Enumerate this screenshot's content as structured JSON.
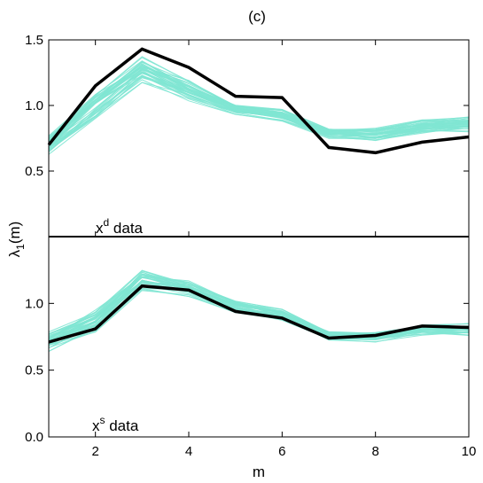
{
  "chart_data": {
    "type": "line",
    "title": "(c)",
    "xlabel": "m",
    "ylabel": "λ₁(m)",
    "ylabel_base": "λ",
    "ylabel_sub": "1",
    "ylabel_rest": "(m)",
    "x": [
      1,
      2,
      3,
      4,
      5,
      6,
      7,
      8,
      9,
      10
    ],
    "xlim": [
      1,
      10
    ],
    "xticks": [
      "2",
      "4",
      "6",
      "8",
      "10"
    ],
    "xtick_values": [
      2,
      4,
      6,
      8,
      10
    ],
    "colors": {
      "simulations": "#7fe6d3",
      "observed": "#000000"
    },
    "panels": [
      {
        "label_base": "x",
        "label_sup": "d",
        "label_rest": " data",
        "ylim": [
          0,
          1.5
        ],
        "yticks": [
          "0.5",
          "1.0",
          "1.5"
        ],
        "ytick_values": [
          0.5,
          1.0,
          1.5
        ],
        "observed": {
          "values": [
            0.7,
            1.15,
            1.43,
            1.29,
            1.07,
            1.06,
            0.68,
            0.64,
            0.72,
            0.76
          ]
        },
        "ensemble": {
          "mean": [
            0.7,
            1.0,
            1.27,
            1.12,
            0.97,
            0.93,
            0.79,
            0.78,
            0.84,
            0.86
          ],
          "spread": [
            0.09,
            0.12,
            0.1,
            0.08,
            0.04,
            0.05,
            0.04,
            0.05,
            0.06,
            0.06
          ],
          "count": 40
        }
      },
      {
        "label_base": "x",
        "label_sup": "s",
        "label_rest": " data",
        "ylim": [
          0,
          1.5
        ],
        "yticks": [
          "0.0",
          "0.5",
          "1.0"
        ],
        "ytick_values": [
          0.0,
          0.5,
          1.0
        ],
        "observed": {
          "values": [
            0.71,
            0.81,
            1.13,
            1.1,
            0.94,
            0.89,
            0.74,
            0.76,
            0.83,
            0.82
          ]
        },
        "ensemble": {
          "mean": [
            0.71,
            0.86,
            1.17,
            1.11,
            0.97,
            0.91,
            0.75,
            0.75,
            0.8,
            0.8
          ],
          "spread": [
            0.08,
            0.09,
            0.09,
            0.06,
            0.05,
            0.05,
            0.04,
            0.05,
            0.05,
            0.05
          ],
          "count": 40
        }
      }
    ]
  }
}
